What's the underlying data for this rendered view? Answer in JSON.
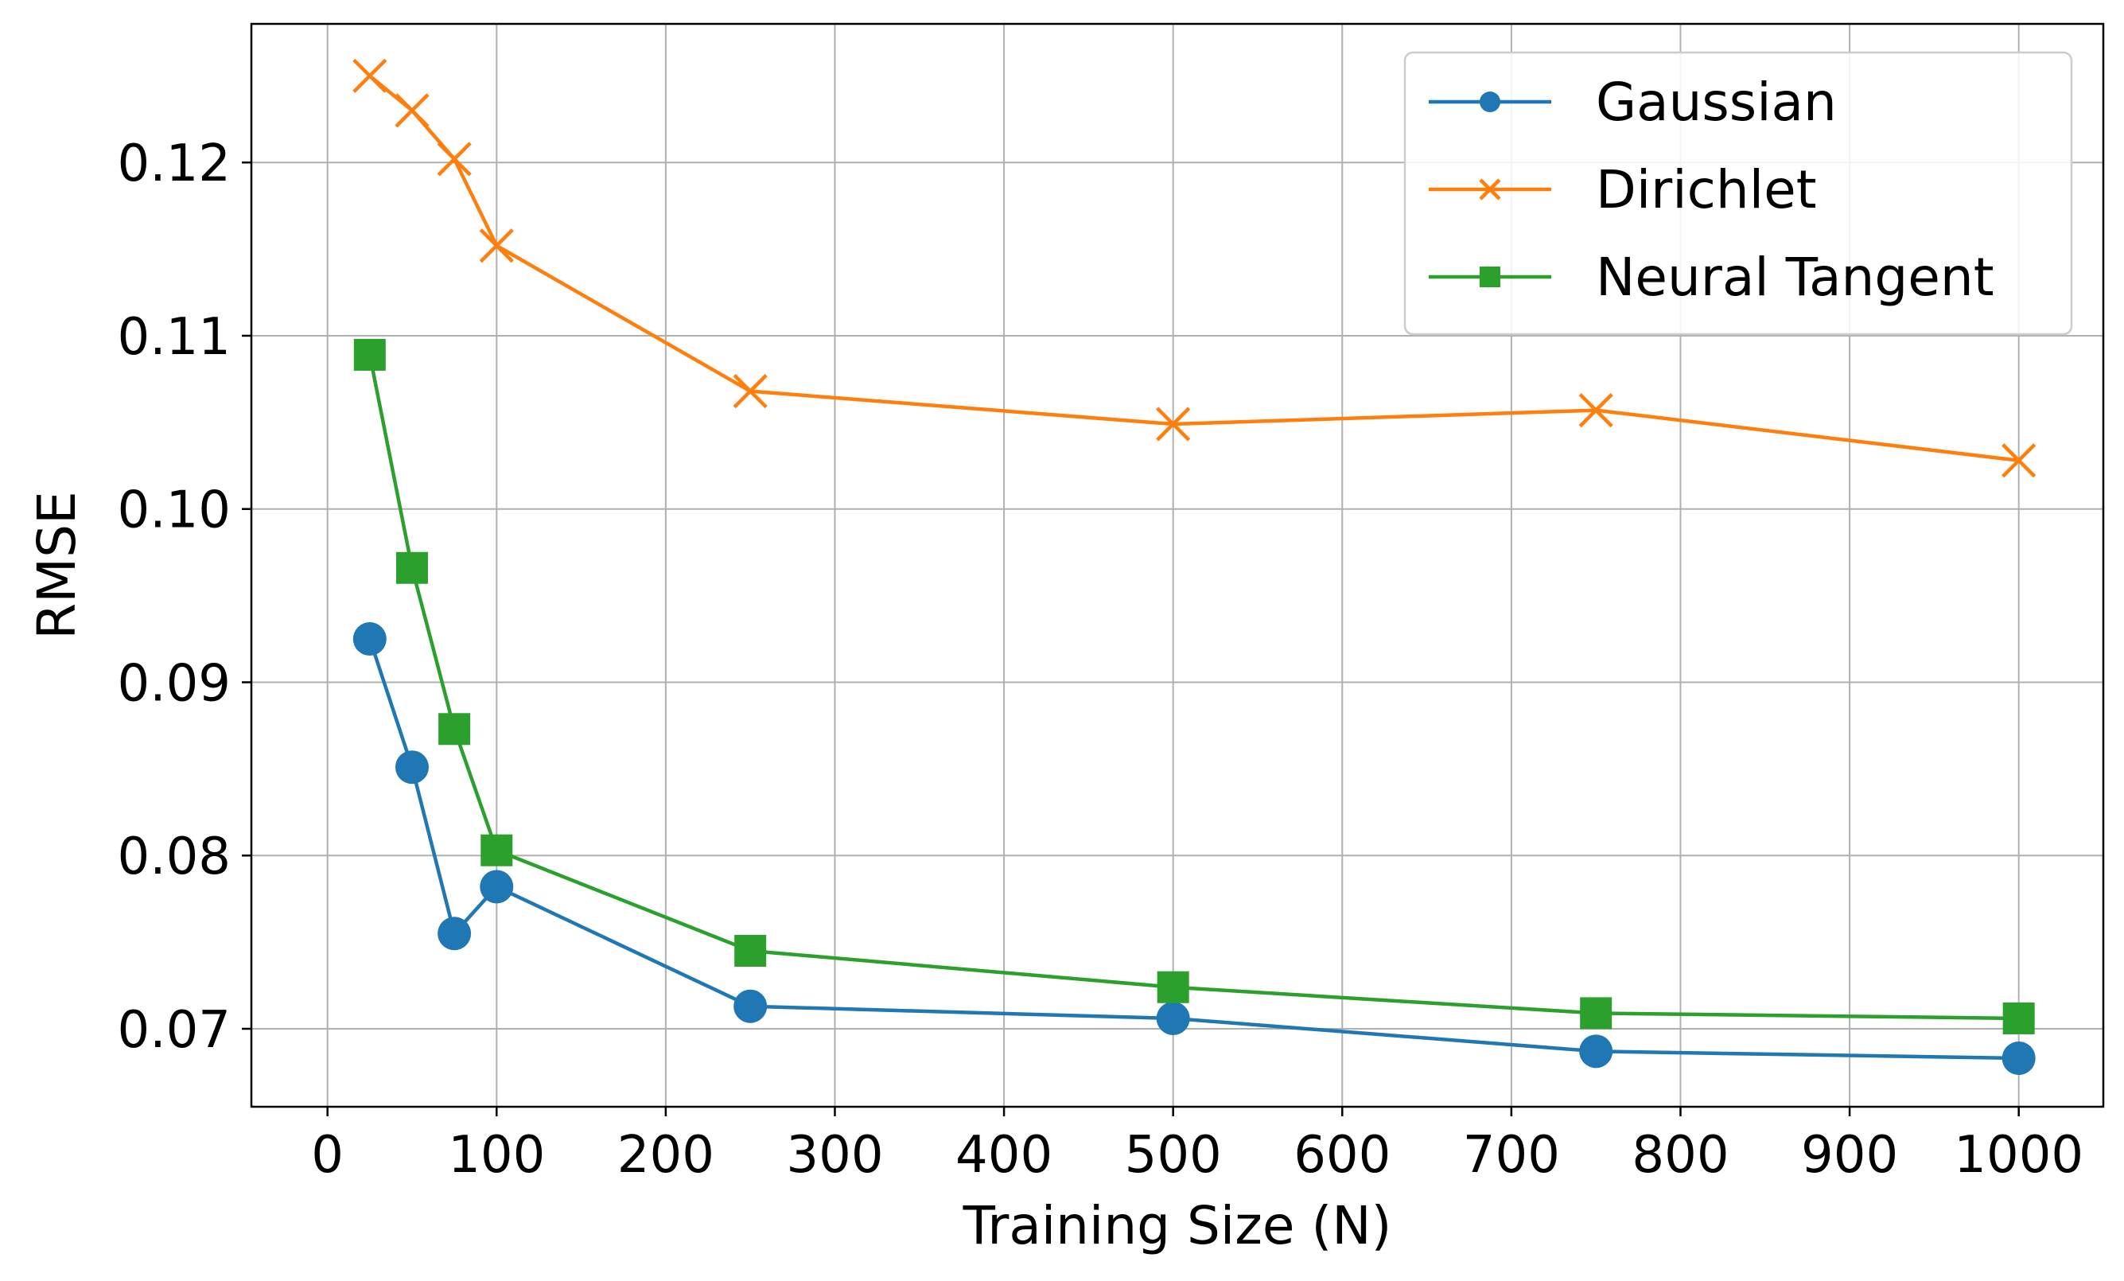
{
  "chart_data": {
    "type": "line",
    "title": "",
    "xlabel": "Training Size (N)",
    "ylabel": "RMSE",
    "xlim": [
      -45,
      1050
    ],
    "ylim": [
      0.0655,
      0.128
    ],
    "xticks": [
      0,
      100,
      200,
      300,
      400,
      500,
      600,
      700,
      800,
      900,
      1000
    ],
    "xtick_labels": [
      "0",
      "100",
      "200",
      "300",
      "400",
      "500",
      "600",
      "700",
      "800",
      "900",
      "1000"
    ],
    "yticks": [
      0.07,
      0.08,
      0.09,
      0.1,
      0.11,
      0.12
    ],
    "ytick_labels": [
      "0.07",
      "0.08",
      "0.09",
      "0.10",
      "0.11",
      "0.12"
    ],
    "grid": true,
    "legend_position": "top-right",
    "x": [
      25,
      50,
      75,
      100,
      250,
      500,
      750,
      1000
    ],
    "series": [
      {
        "name": "Gaussian",
        "color": "#1f77b4",
        "marker": "circle",
        "values": [
          0.0925,
          0.0851,
          0.0755,
          0.0782,
          0.0713,
          0.0706,
          0.0687,
          0.0683
        ]
      },
      {
        "name": "Dirichlet",
        "color": "#ff7f0e",
        "marker": "x",
        "values": [
          0.125,
          0.123,
          0.1202,
          0.1152,
          0.1068,
          0.1049,
          0.1057,
          0.1028
        ]
      },
      {
        "name": "Neural Tangent",
        "color": "#2ca02c",
        "marker": "square",
        "values": [
          0.1089,
          0.0966,
          0.0873,
          0.0803,
          0.0745,
          0.0724,
          0.0709,
          0.0706
        ]
      }
    ]
  }
}
